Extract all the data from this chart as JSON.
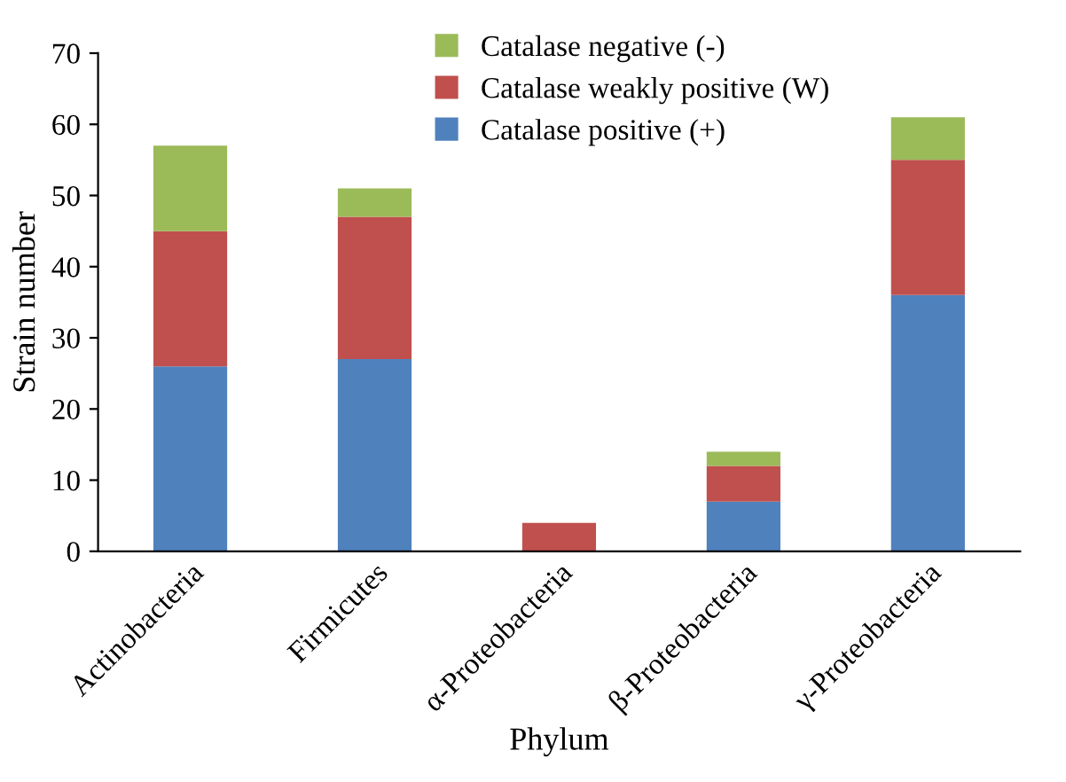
{
  "chart_data": {
    "type": "bar",
    "stacked": true,
    "xlabel": "Phylum",
    "ylabel": "Strain number",
    "categories": [
      "Actinobacteria",
      "Firmicutes",
      "α-Proteobacteria",
      "β-Proteobacteria",
      "γ-Proteobacteria"
    ],
    "series": [
      {
        "name": "Catalase positive (+)",
        "color": "#4f81bd",
        "values": [
          26,
          27,
          0,
          7,
          36
        ]
      },
      {
        "name": "Catalase weakly positive (W)",
        "color": "#c0504d",
        "values": [
          19,
          20,
          4,
          5,
          19
        ]
      },
      {
        "name": "Catalase negative (-)",
        "color": "#9bbb59",
        "values": [
          12,
          4,
          0,
          2,
          6
        ]
      }
    ],
    "ylim": [
      0,
      70
    ],
    "yticks": [
      0,
      10,
      20,
      30,
      40,
      50,
      60,
      70
    ],
    "grid": false,
    "legend": "top"
  }
}
